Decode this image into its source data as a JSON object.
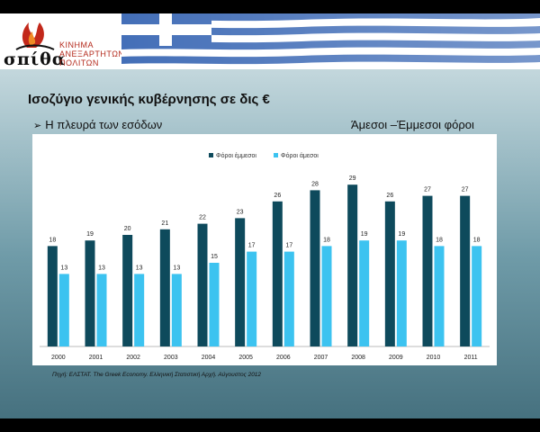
{
  "logo": {
    "wordmark": "σπίθα",
    "org_line1": "ΚΙΝΗΜΑ",
    "org_line2": "ΑΝΕΞΑΡΤΗΤΩΝ",
    "org_line3": "ΠΟΛΙΤΩΝ"
  },
  "title": "Ισοζύγιο γενικής κυβέρνησης σε δις €",
  "subtitle_left": "Η πλευρά των εσόδων",
  "subtitle_right": "Άμεσοι –Έμμεσοι φόροι",
  "source": "Πηγή: ΕΛΣΤΑΤ. The Greek Economy. Ελληνική Στατιστική Αρχή. Αύγουστος 2012",
  "colors": {
    "indirect": "#0e4a5c",
    "direct": "#3cc3f0",
    "flag_blue": "#2f5fb0"
  },
  "chart_data": {
    "type": "bar",
    "categories": [
      "2000",
      "2001",
      "2002",
      "2003",
      "2004",
      "2005",
      "2006",
      "2007",
      "2008",
      "2009",
      "2010",
      "2011"
    ],
    "series": [
      {
        "name": "Φόροι έμμεσοι",
        "values": [
          18,
          19,
          20,
          21,
          22,
          23,
          26,
          28,
          29,
          26,
          27,
          27
        ]
      },
      {
        "name": "Φόροι άμεσοι",
        "values": [
          13,
          13,
          13,
          13,
          15,
          17,
          17,
          18,
          19,
          19,
          18,
          18
        ]
      }
    ],
    "title": "",
    "xlabel": "",
    "ylabel": "",
    "ylim": [
      0,
      30
    ],
    "grid": false,
    "legend_position": "top-center",
    "data_labels": true
  }
}
